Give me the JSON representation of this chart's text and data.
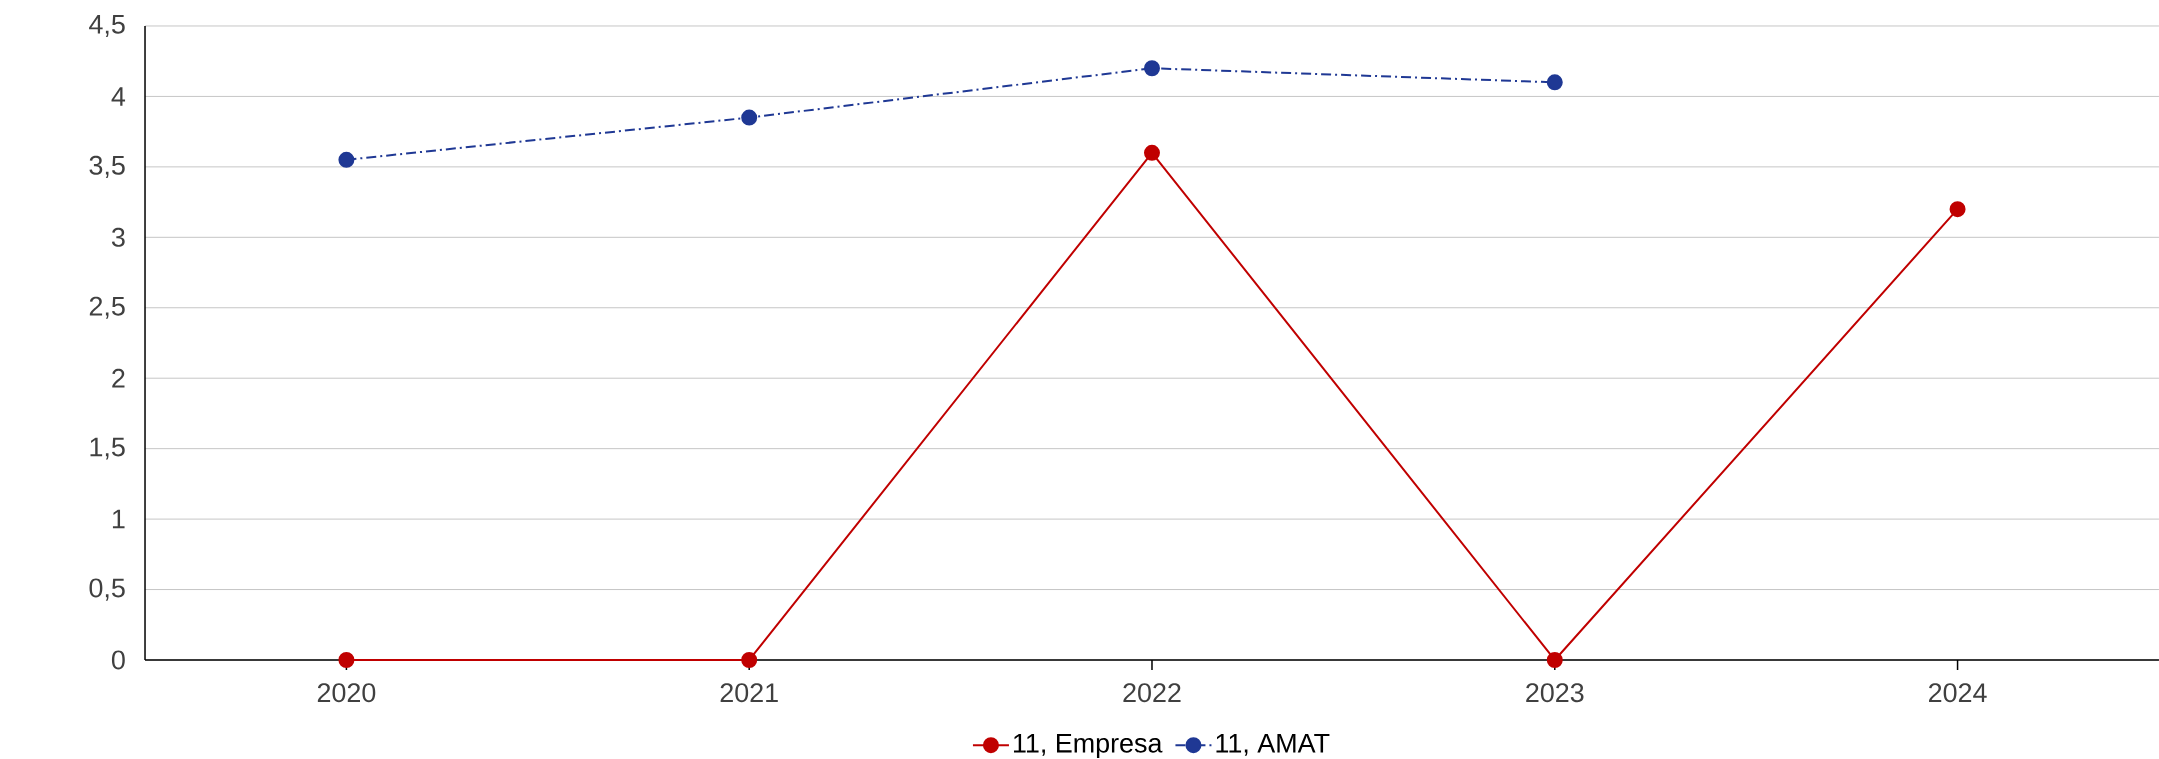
{
  "chart_data": {
    "type": "line",
    "categories": [
      "2020",
      "2021",
      "2022",
      "2023",
      "2024"
    ],
    "series": [
      {
        "name": "11, Empresa",
        "color": "#c00000",
        "values": [
          0,
          0,
          3.6,
          0,
          3.2
        ],
        "line_style": "solid"
      },
      {
        "name": "11, AMAT",
        "color": "#1f3894",
        "values": [
          3.55,
          3.85,
          4.2,
          4.1,
          null
        ],
        "line_style": "dashdot"
      }
    ],
    "ylim": [
      0,
      4.5
    ],
    "yticks": [
      0,
      {
        "value": 0.5,
        "label": "0,5"
      },
      1,
      {
        "value": 1.5,
        "label": "1,5"
      },
      2,
      {
        "value": 2.5,
        "label": "2,5"
      },
      3,
      {
        "value": 3.5,
        "label": "3,5"
      },
      4,
      {
        "value": 4.5,
        "label": "4,5"
      }
    ],
    "grid": "y",
    "legend": "bottom",
    "marker": "circle"
  }
}
